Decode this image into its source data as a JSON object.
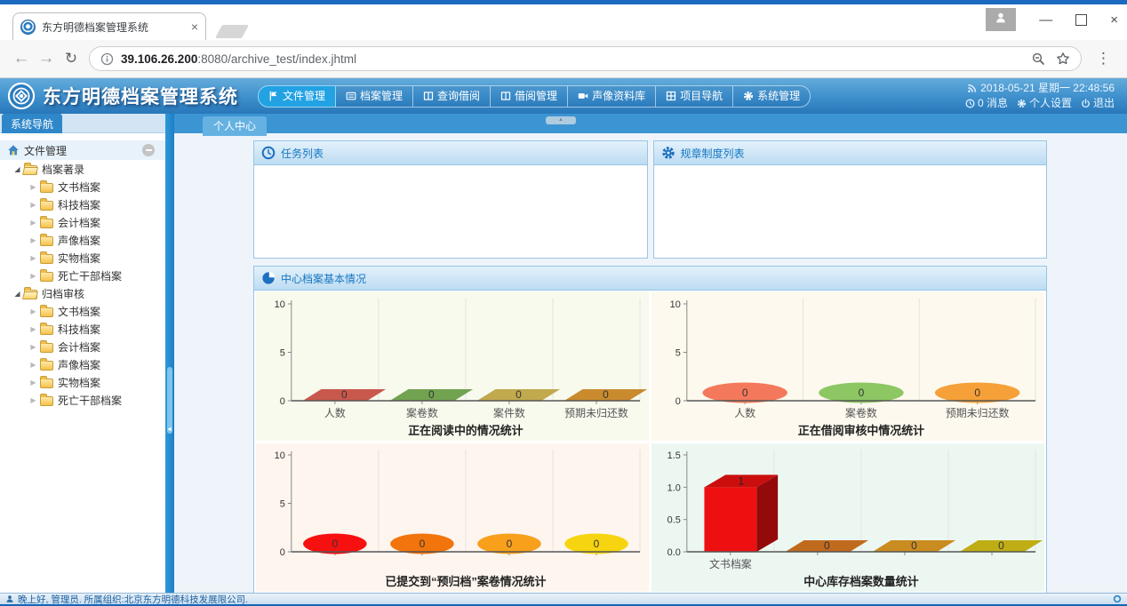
{
  "browser": {
    "tab_title": "东方明德档案管理系统",
    "url_host": "39.106.26.200",
    "url_rest": ":8080/archive_test/index.jhtml"
  },
  "header": {
    "logo_text": "东方明德档案管理系统",
    "nav": [
      {
        "label": "文件管理",
        "icon": "flag",
        "active": true
      },
      {
        "label": "档案管理",
        "icon": "list",
        "active": false
      },
      {
        "label": "查询借阅",
        "icon": "columns",
        "active": false
      },
      {
        "label": "借阅管理",
        "icon": "columns",
        "active": false
      },
      {
        "label": "声像资料库",
        "icon": "camera",
        "active": false
      },
      {
        "label": "项目导航",
        "icon": "grid",
        "active": false
      },
      {
        "label": "系统管理",
        "icon": "gear",
        "active": false
      }
    ],
    "datetime": "2018-05-21 星期一 22:48:56",
    "messages": "0 消息",
    "settings": "个人设置",
    "logout": "退出"
  },
  "sidebar": {
    "tab": "系统导航",
    "root": "文件管理",
    "groups": [
      {
        "label": "档案著录",
        "children": [
          "文书档案",
          "科技档案",
          "会计档案",
          "声像档案",
          "实物档案",
          "死亡干部档案"
        ]
      },
      {
        "label": "归档审核",
        "children": [
          "文书档案",
          "科技档案",
          "会计档案",
          "声像档案",
          "实物档案",
          "死亡干部档案"
        ]
      }
    ]
  },
  "content": {
    "tab": "个人中心",
    "panels": {
      "tasks": "任务列表",
      "rules": "规章制度列表",
      "center": "中心档案基本情况"
    }
  },
  "statusbar": {
    "greeting": "晚上好, 管理员. 所属组织:北京东方明德科技发展限公司."
  },
  "chart_data": [
    {
      "type": "bar",
      "shape": "parallelogram",
      "title": "正在阅读中的情况统计",
      "categories": [
        "人数",
        "案卷数",
        "案件数",
        "预期未归还数"
      ],
      "values": [
        0,
        0,
        0,
        0
      ],
      "colors": [
        "#c9584c",
        "#71a350",
        "#c1a94e",
        "#c98b2e"
      ],
      "ylim": [
        0,
        10
      ],
      "yticks": [
        0,
        5,
        10
      ],
      "ytick_labels": [
        "0",
        "5",
        "10"
      ],
      "grid": true,
      "bg": "#f8faee"
    },
    {
      "type": "bar",
      "shape": "ellipse",
      "title": "正在借阅审核中情况统计",
      "categories": [
        "人数",
        "案卷数",
        "预期未归还数"
      ],
      "values": [
        0,
        0,
        0
      ],
      "colors": [
        "#f4795c",
        "#8cc763",
        "#f5a038"
      ],
      "ylim": [
        0,
        10
      ],
      "yticks": [
        0,
        5,
        10
      ],
      "ytick_labels": [
        "0",
        "5",
        "10"
      ],
      "grid": true,
      "bg": "#fdf9ee"
    },
    {
      "type": "bar",
      "shape": "ellipse",
      "title": "已提交到“预归档”案卷情况统计",
      "categories": [
        "",
        "",
        "",
        ""
      ],
      "values": [
        0,
        0,
        0,
        0
      ],
      "colors": [
        "#f71010",
        "#f2740c",
        "#f8a01c",
        "#f6d510"
      ],
      "ylim": [
        0,
        10
      ],
      "yticks": [
        0,
        5,
        10
      ],
      "ytick_labels": [
        "0",
        "5",
        "10"
      ],
      "grid": true,
      "bg": "#fdf5ee"
    },
    {
      "type": "bar",
      "shape": "cube",
      "title": "中心库存档案数量统计",
      "categories": [
        "文书档案",
        "",
        "",
        ""
      ],
      "values": [
        1,
        0,
        0,
        0
      ],
      "colors": [
        "#ee1010",
        "#c06a1e",
        "#ca8c20",
        "#bfad16"
      ],
      "ylim": [
        0,
        1.5
      ],
      "yticks": [
        0,
        0.5,
        1.0,
        1.5
      ],
      "ytick_labels": [
        "0.0",
        "0.5",
        "1.0",
        "1.5"
      ],
      "grid": true,
      "bg": "#edf7f2"
    }
  ]
}
